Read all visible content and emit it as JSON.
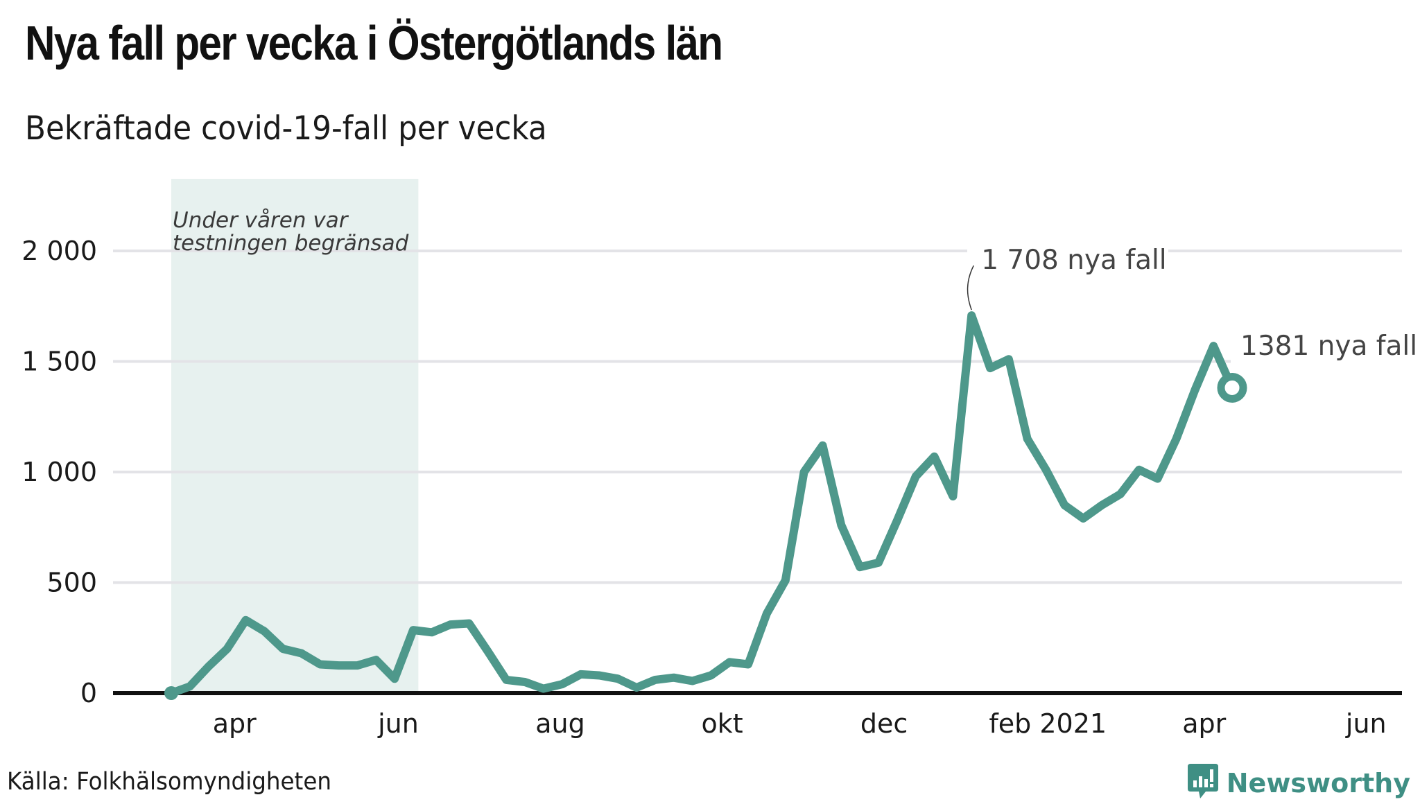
{
  "header": {
    "title": "Nya fall per vecka i Östergötlands län",
    "subtitle": "Bekräftade covid-19-fall per vecka"
  },
  "footer": {
    "source": "Källa: Folkhälsomyndigheten",
    "brand": "Newsworthy",
    "brand_icon": "bar-chart-speech-bubble-icon"
  },
  "colors": {
    "line": "#4e988b",
    "shade": "#e7f1ef",
    "grid": "#e3e3e7",
    "axis": "#111111",
    "brand": "#3f8f84"
  },
  "chart_data": {
    "type": "line",
    "title": "Nya fall per vecka i Östergötlands län",
    "subtitle": "Bekräftade covid-19-fall per vecka",
    "xlabel": "",
    "ylabel": "",
    "ylim": [
      0,
      2000
    ],
    "yticks": [
      0,
      500,
      1000,
      1500,
      2000
    ],
    "ytick_labels": [
      "0",
      "500",
      "1 000",
      "1 500",
      "2 000"
    ],
    "xticks": [
      {
        "label": "apr",
        "week_index": 3.4
      },
      {
        "label": "jun",
        "week_index": 12.2
      },
      {
        "label": "aug",
        "week_index": 20.9
      },
      {
        "label": "okt",
        "week_index": 29.6
      },
      {
        "label": "dec",
        "week_index": 38.3
      },
      {
        "label": "feb 2021",
        "week_index": 47.1
      },
      {
        "label": "apr",
        "week_index": 55.5
      },
      {
        "label": "jun",
        "week_index": 64.2
      }
    ],
    "x_domain_weeks": [
      -3,
      65.5
    ],
    "grid": true,
    "series": [
      {
        "name": "Bekräftade fall per vecka",
        "values": [
          0,
          30,
          120,
          200,
          330,
          280,
          200,
          180,
          130,
          125,
          125,
          150,
          65,
          285,
          275,
          310,
          315,
          190,
          60,
          50,
          20,
          40,
          85,
          80,
          65,
          25,
          60,
          70,
          55,
          80,
          140,
          130,
          360,
          510,
          1000,
          1120,
          760,
          570,
          590,
          780,
          980,
          1070,
          890,
          1708,
          1470,
          1510,
          1150,
          1010,
          850,
          790,
          850,
          900,
          1010,
          970,
          1150,
          1370,
          1570,
          1381
        ]
      }
    ],
    "shaded_region": {
      "from_week_index": 0,
      "to_week_index": 13,
      "label_line1": "Under våren var",
      "label_line2": "testningen begränsad"
    },
    "annotations": [
      {
        "text": "1 708 nya fall",
        "week_index": 43,
        "value": 1708
      },
      {
        "text": "1381 nya fall",
        "week_index": 57,
        "value": 1381
      }
    ]
  }
}
